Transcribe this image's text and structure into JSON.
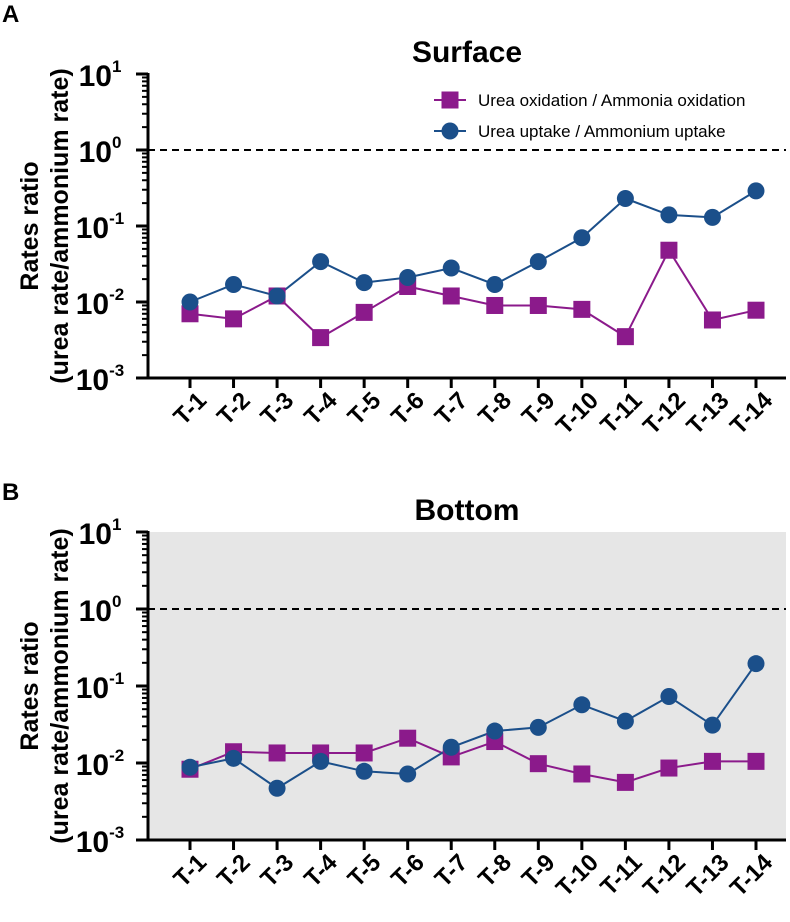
{
  "chart_data": [
    {
      "type": "line",
      "panel_label": "A",
      "title": "Surface",
      "ylabel_line1": "Rates ratio",
      "ylabel_line2": "(urea rate/ammonium rate)",
      "yscale": "log",
      "ylim": [
        0.001,
        10
      ],
      "ytick_exponents": [
        "-3",
        "-2",
        "-1",
        "0",
        "1"
      ],
      "ytick_base": "10",
      "reference_line": 1,
      "background": "#ffffff",
      "legend_position": "top-right",
      "categories": [
        "T-1",
        "T-2",
        "T-3",
        "T-4",
        "T-5",
        "T-6",
        "T-7",
        "T-8",
        "T-9",
        "T-10",
        "T-11",
        "T-12",
        "T-13",
        "T-14"
      ],
      "series": [
        {
          "name": "Urea oxidation / Ammonia oxidation",
          "marker": "square",
          "color": "#8B1A8B",
          "values": [
            0.007,
            0.006,
            0.012,
            0.0034,
            0.0073,
            0.016,
            0.012,
            0.009,
            0.009,
            0.008,
            0.0035,
            0.048,
            0.0058,
            0.0078
          ]
        },
        {
          "name": "Urea uptake / Ammonium uptake",
          "marker": "circle",
          "color": "#1B4F8A",
          "values": [
            0.01,
            0.017,
            0.012,
            0.034,
            0.018,
            0.021,
            0.028,
            0.017,
            0.034,
            0.07,
            0.23,
            0.14,
            0.13,
            0.29
          ]
        }
      ]
    },
    {
      "type": "line",
      "panel_label": "B",
      "title": "Bottom",
      "ylabel_line1": "Rates ratio",
      "ylabel_line2": "(urea rate/ammonium rate)",
      "yscale": "log",
      "ylim": [
        0.001,
        10
      ],
      "ytick_exponents": [
        "-3",
        "-2",
        "-1",
        "0",
        "1"
      ],
      "ytick_base": "10",
      "reference_line": 1,
      "background": "#e6e6e6",
      "categories": [
        "T-1",
        "T-2",
        "T-3",
        "T-4",
        "T-5",
        "T-6",
        "T-7",
        "T-8",
        "T-9",
        "T-10",
        "T-11",
        "T-12",
        "T-13",
        "T-14"
      ],
      "series": [
        {
          "name": "Urea oxidation / Ammonia oxidation",
          "marker": "square",
          "color": "#8B1A8B",
          "values": [
            0.0083,
            0.014,
            0.0135,
            0.0135,
            0.0135,
            0.021,
            0.012,
            0.019,
            0.0098,
            0.0072,
            0.0056,
            0.0086,
            0.0105,
            0.0105
          ]
        },
        {
          "name": "Urea uptake / Ammonium uptake",
          "marker": "circle",
          "color": "#1B4F8A",
          "values": [
            0.0088,
            0.0115,
            0.0047,
            0.0105,
            0.0078,
            0.0072,
            0.016,
            0.026,
            0.029,
            0.057,
            0.035,
            0.073,
            0.031,
            0.195
          ]
        }
      ]
    }
  ]
}
